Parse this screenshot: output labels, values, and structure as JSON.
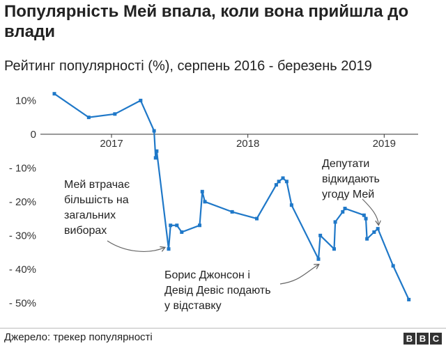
{
  "header": {
    "title": "Популярність Мей впала, коли вона прийшла до влади",
    "subtitle": "Рейтинг популярності (%), серпень 2016 - березень 2019"
  },
  "footer": {
    "source": "Джерело: трекер популярності",
    "brand": [
      "B",
      "B",
      "C"
    ]
  },
  "chart_data": {
    "type": "line",
    "title": "Популярність Мей впала, коли вона прийшла до влади",
    "subtitle": "Рейтинг популярності (%), серпень 2016 - березень 2019",
    "xlabel": "",
    "ylabel": "",
    "ylim": [
      -52,
      14
    ],
    "xlim": [
      "2016-08-01",
      "2019-03-31"
    ],
    "y_ticks": [
      {
        "value": 10,
        "label": "10%"
      },
      {
        "value": 0,
        "label": "0"
      },
      {
        "value": -10,
        "label": "- 10%"
      },
      {
        "value": -20,
        "label": "- 20%"
      },
      {
        "value": -30,
        "label": "- 30%"
      },
      {
        "value": -40,
        "label": "- 40%"
      },
      {
        "value": -50,
        "label": "- 50%"
      }
    ],
    "x_ticks": [
      {
        "value": "2017-01-01",
        "label": "2017"
      },
      {
        "value": "2018-01-01",
        "label": "2018"
      },
      {
        "value": "2019-01-01",
        "label": "2019"
      }
    ],
    "grid": false,
    "color": "#1f78c8",
    "series": [
      {
        "points": [
          {
            "x": "2016-08-01",
            "y": 12
          },
          {
            "x": "2016-11-01",
            "y": 5
          },
          {
            "x": "2017-01-10",
            "y": 6
          },
          {
            "x": "2017-03-20",
            "y": 10
          },
          {
            "x": "2017-04-25",
            "y": 1
          },
          {
            "x": "2017-04-29",
            "y": -7
          },
          {
            "x": "2017-05-02",
            "y": -5
          },
          {
            "x": "2017-06-03",
            "y": -34
          },
          {
            "x": "2017-06-08",
            "y": -27
          },
          {
            "x": "2017-06-25",
            "y": -27
          },
          {
            "x": "2017-07-08",
            "y": -29
          },
          {
            "x": "2017-08-25",
            "y": -27
          },
          {
            "x": "2017-09-01",
            "y": -17
          },
          {
            "x": "2017-09-08",
            "y": -20
          },
          {
            "x": "2017-11-20",
            "y": -23
          },
          {
            "x": "2018-01-25",
            "y": -25
          },
          {
            "x": "2018-03-18",
            "y": -15
          },
          {
            "x": "2018-03-25",
            "y": -14
          },
          {
            "x": "2018-04-05",
            "y": -13
          },
          {
            "x": "2018-04-15",
            "y": -14
          },
          {
            "x": "2018-04-28",
            "y": -21
          },
          {
            "x": "2018-07-09",
            "y": -37
          },
          {
            "x": "2018-07-14",
            "y": -30
          },
          {
            "x": "2018-08-20",
            "y": -34
          },
          {
            "x": "2018-08-23",
            "y": -26
          },
          {
            "x": "2018-09-12",
            "y": -23
          },
          {
            "x": "2018-09-18",
            "y": -22
          },
          {
            "x": "2018-11-08",
            "y": -24
          },
          {
            "x": "2018-11-13",
            "y": -25
          },
          {
            "x": "2018-11-16",
            "y": -31
          },
          {
            "x": "2018-12-05",
            "y": -29
          },
          {
            "x": "2018-12-15",
            "y": -28
          },
          {
            "x": "2019-01-25",
            "y": -39
          },
          {
            "x": "2019-03-08",
            "y": -49
          }
        ]
      }
    ],
    "annotations": [
      {
        "lines": [
          "Мей втрачає",
          "більшість на",
          "загальних",
          "виборах"
        ],
        "target": {
          "x": "2017-06-03",
          "y": -34
        }
      },
      {
        "lines": [
          "Борис Джонсон і",
          "Девід Девіс подають",
          "у відставку"
        ],
        "target": {
          "x": "2018-07-09",
          "y": -37
        }
      },
      {
        "lines": [
          "Депутати",
          "відкидають",
          "угоду Мей"
        ],
        "target": {
          "x": "2018-12-15",
          "y": -28
        }
      }
    ]
  }
}
